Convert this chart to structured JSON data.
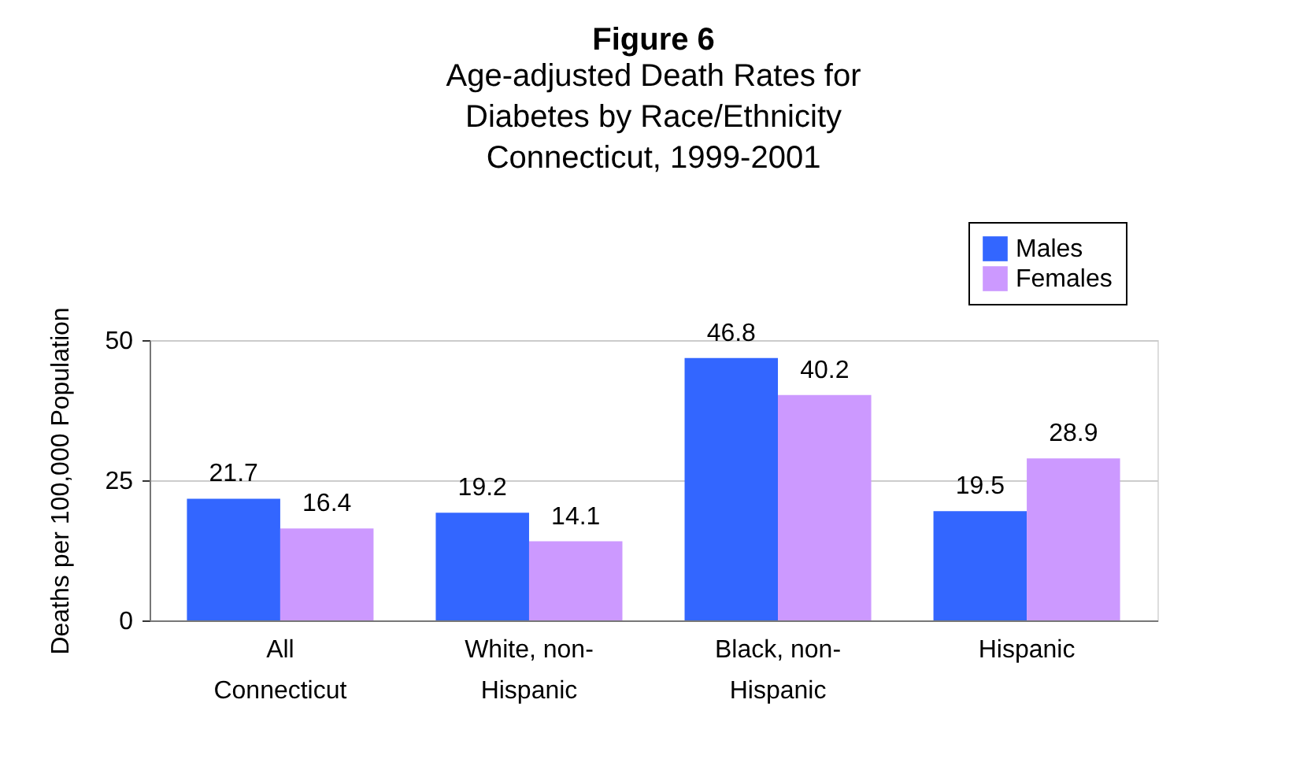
{
  "chart_data": {
    "type": "bar",
    "title": "Figure 6",
    "subtitle": "Age-adjusted Death Rates for\nDiabetes by Race/Ethnicity\nConnecticut, 1999-2001",
    "ylabel": "Deaths per 100,000 Population",
    "categories": [
      "All\nConnecticut",
      "White, non-\nHispanic",
      "Black, non-\nHispanic",
      "Hispanic"
    ],
    "series": [
      {
        "name": "Males",
        "color": "#3366ff",
        "values": [
          21.7,
          19.2,
          46.8,
          19.5
        ]
      },
      {
        "name": "Females",
        "color": "#cc99ff",
        "values": [
          16.4,
          14.1,
          40.2,
          28.9
        ]
      }
    ],
    "ylim": [
      0,
      50
    ],
    "yticks": [
      0,
      25,
      50
    ],
    "grid": "y",
    "legend": "top right",
    "data_labels": true
  }
}
